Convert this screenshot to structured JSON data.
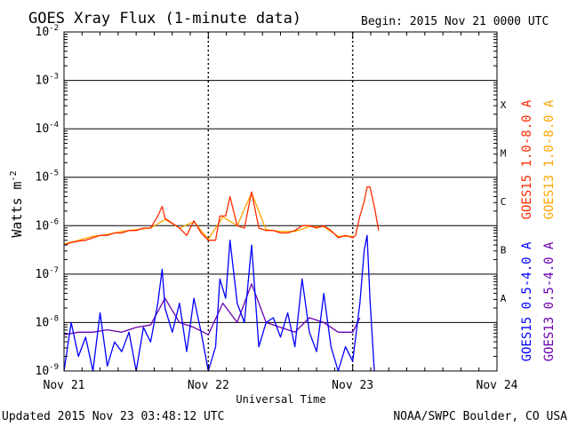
{
  "chart_data": {
    "type": "line",
    "title": "GOES Xray Flux (1-minute data)",
    "begin_label": "Begin:  2015 Nov 21 0000 UTC",
    "ylabel": "Watts m",
    "ylabel_exponent": "-2",
    "xlabel": "Universal Time",
    "y_scale": "log",
    "ylim": [
      1e-09,
      0.01
    ],
    "y_ticks": [
      {
        "mantissa": "10",
        "exp": "-9",
        "value": -9
      },
      {
        "mantissa": "10",
        "exp": "-8",
        "value": -8
      },
      {
        "mantissa": "10",
        "exp": "-7",
        "value": -7
      },
      {
        "mantissa": "10",
        "exp": "-6",
        "value": -6
      },
      {
        "mantissa": "10",
        "exp": "-5",
        "value": -5
      },
      {
        "mantissa": "10",
        "exp": "-4",
        "value": -4
      },
      {
        "mantissa": "10",
        "exp": "-3",
        "value": -3
      },
      {
        "mantissa": "10",
        "exp": "-2",
        "value": -2
      }
    ],
    "x_ticks": [
      {
        "label": "Nov 21",
        "day": 0
      },
      {
        "label": "Nov 22",
        "day": 1
      },
      {
        "label": "Nov 23",
        "day": 2
      },
      {
        "label": "Nov 24",
        "day": 3
      }
    ],
    "xlim_days": [
      0,
      3
    ],
    "flare_classes": [
      {
        "label": "A",
        "log_center": -7.5
      },
      {
        "label": "B",
        "log_center": -6.5
      },
      {
        "label": "C",
        "log_center": -5.5
      },
      {
        "label": "M",
        "log_center": -4.5
      },
      {
        "label": "X",
        "log_center": -3.5
      }
    ],
    "grid": "horizontal at each decade; dotted vertical at day boundaries",
    "series": [
      {
        "name": "GOES15 1.0-8.0 A",
        "color": "#ff2a00",
        "x_days": [
          0,
          0.05,
          0.1,
          0.15,
          0.2,
          0.25,
          0.3,
          0.35,
          0.4,
          0.45,
          0.5,
          0.55,
          0.6,
          0.65,
          0.68,
          0.7,
          0.75,
          0.8,
          0.85,
          0.9,
          0.95,
          1.0,
          1.05,
          1.08,
          1.12,
          1.15,
          1.2,
          1.25,
          1.3,
          1.35,
          1.4,
          1.45,
          1.5,
          1.55,
          1.6,
          1.65,
          1.7,
          1.75,
          1.8,
          1.85,
          1.9,
          1.95,
          2.0,
          2.02,
          2.05,
          2.08,
          2.1,
          2.12,
          2.15,
          2.18
        ],
        "log_values": [
          -6.4,
          -6.35,
          -6.32,
          -6.3,
          -6.25,
          -6.2,
          -6.2,
          -6.15,
          -6.15,
          -6.1,
          -6.1,
          -6.05,
          -6.05,
          -5.8,
          -5.6,
          -5.85,
          -5.95,
          -6.05,
          -6.2,
          -5.9,
          -6.15,
          -6.3,
          -6.3,
          -5.8,
          -5.8,
          -5.4,
          -6.0,
          -6.05,
          -5.3,
          -6.05,
          -6.1,
          -6.1,
          -6.15,
          -6.15,
          -6.1,
          -6.0,
          -6.0,
          -6.05,
          -6.0,
          -6.1,
          -6.25,
          -6.2,
          -6.25,
          -6.2,
          -5.8,
          -5.5,
          -5.2,
          -5.2,
          -5.6,
          -6.1
        ]
      },
      {
        "name": "GOES13 1.0-8.0 A",
        "color": "#ffa500",
        "x_days": [
          0,
          0.1,
          0.2,
          0.3,
          0.4,
          0.5,
          0.6,
          0.7,
          0.8,
          0.9,
          1.0,
          1.1,
          1.2,
          1.3,
          1.4,
          1.5,
          1.6,
          1.7,
          1.8,
          1.9,
          2.0
        ],
        "log_values": [
          -6.38,
          -6.3,
          -6.22,
          -6.18,
          -6.12,
          -6.08,
          -6.05,
          -5.87,
          -6.05,
          -5.92,
          -6.28,
          -5.82,
          -6.0,
          -5.32,
          -6.08,
          -6.12,
          -6.12,
          -6.02,
          -6.02,
          -6.22,
          -6.22
        ]
      },
      {
        "name": "GOES15 0.5-4.0 A",
        "color": "#0000ff",
        "x_days": [
          0,
          0.05,
          0.1,
          0.15,
          0.2,
          0.25,
          0.3,
          0.35,
          0.4,
          0.45,
          0.5,
          0.55,
          0.6,
          0.65,
          0.68,
          0.7,
          0.75,
          0.8,
          0.85,
          0.9,
          0.95,
          1.0,
          1.05,
          1.08,
          1.12,
          1.15,
          1.2,
          1.25,
          1.3,
          1.35,
          1.4,
          1.45,
          1.5,
          1.55,
          1.6,
          1.65,
          1.7,
          1.75,
          1.8,
          1.85,
          1.9,
          1.95,
          2.0,
          2.05,
          2.08,
          2.1,
          2.12,
          2.15
        ],
        "log_values": [
          -9.0,
          -8.0,
          -8.7,
          -8.3,
          -9.0,
          -7.8,
          -8.9,
          -8.4,
          -8.6,
          -8.2,
          -9.0,
          -8.1,
          -8.4,
          -7.6,
          -6.9,
          -7.7,
          -8.2,
          -7.6,
          -8.6,
          -7.5,
          -8.2,
          -9.0,
          -8.5,
          -7.1,
          -7.5,
          -6.3,
          -7.6,
          -8.0,
          -6.4,
          -8.5,
          -8.0,
          -7.9,
          -8.3,
          -7.8,
          -8.5,
          -7.1,
          -8.2,
          -8.6,
          -7.4,
          -8.5,
          -9.0,
          -8.5,
          -8.8,
          -7.6,
          -6.5,
          -6.2,
          -7.5,
          -9.0
        ]
      },
      {
        "name": "GOES13 0.5-4.0 A",
        "color": "#6a00b0",
        "x_days": [
          0,
          0.1,
          0.2,
          0.3,
          0.4,
          0.5,
          0.6,
          0.7,
          0.8,
          0.9,
          1.0,
          1.1,
          1.2,
          1.3,
          1.4,
          1.5,
          1.6,
          1.7,
          1.8,
          1.9,
          2.0,
          2.05
        ],
        "log_values": [
          -8.25,
          -8.2,
          -8.2,
          -8.15,
          -8.2,
          -8.1,
          -8.05,
          -7.5,
          -8.0,
          -8.1,
          -8.25,
          -7.6,
          -8.0,
          -7.2,
          -8.0,
          -8.1,
          -8.2,
          -7.9,
          -8.0,
          -8.2,
          -8.2,
          -7.9
        ]
      }
    ]
  },
  "footer": {
    "updated": "Updated 2015 Nov 23 03:48:12 UTC",
    "credit": "NOAA/SWPC Boulder, CO USA"
  }
}
